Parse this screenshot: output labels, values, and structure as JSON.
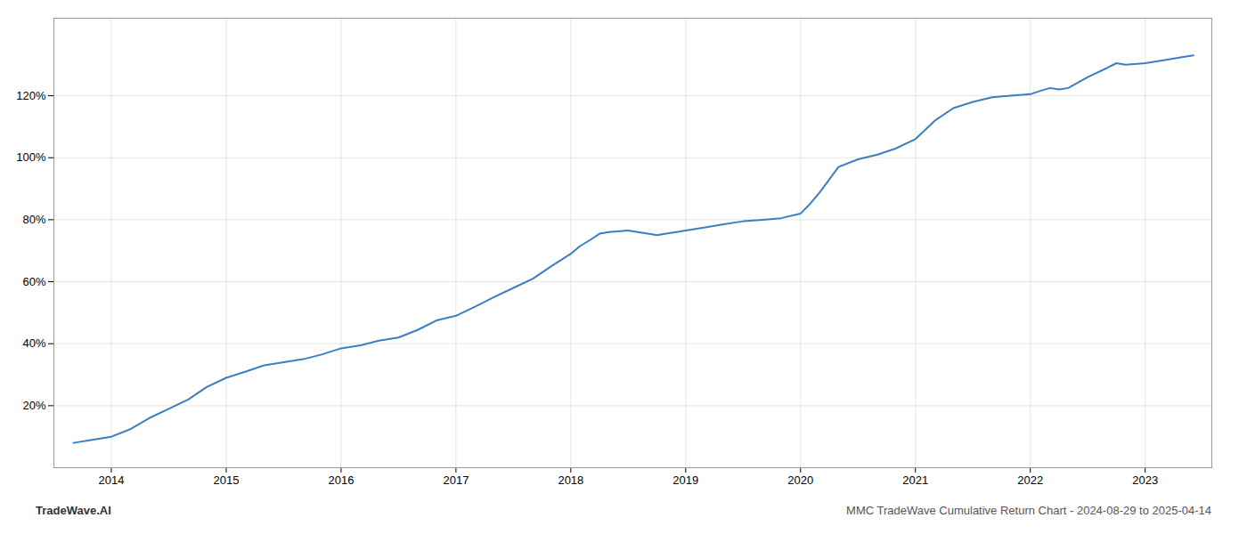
{
  "chart_data": {
    "type": "line",
    "annotations": [
      "TradeWave.AI",
      "MMC TradeWave Cumulative Return Chart - 2024-08-29 to 2025-04-14"
    ],
    "x": [
      2013.67,
      2013.83,
      2014.0,
      2014.17,
      2014.33,
      2014.5,
      2014.67,
      2014.83,
      2015.0,
      2015.17,
      2015.33,
      2015.5,
      2015.67,
      2015.83,
      2016.0,
      2016.17,
      2016.33,
      2016.5,
      2016.67,
      2016.83,
      2017.0,
      2017.17,
      2017.33,
      2017.5,
      2017.67,
      2017.83,
      2018.0,
      2018.08,
      2018.17,
      2018.25,
      2018.33,
      2018.5,
      2018.58,
      2018.67,
      2018.75,
      2018.83,
      2019.0,
      2019.17,
      2019.25,
      2019.33,
      2019.5,
      2019.67,
      2019.83,
      2020.0,
      2020.08,
      2020.17,
      2020.25,
      2020.33,
      2020.5,
      2020.67,
      2020.83,
      2021.0,
      2021.17,
      2021.33,
      2021.5,
      2021.67,
      2021.83,
      2022.0,
      2022.08,
      2022.17,
      2022.25,
      2022.33,
      2022.5,
      2022.67,
      2022.75,
      2022.83,
      2023.0,
      2023.17,
      2023.33,
      2023.42
    ],
    "values": [
      8.0,
      9.0,
      10.0,
      12.5,
      16.0,
      19.0,
      22.0,
      26.0,
      29.0,
      31.0,
      33.0,
      34.0,
      35.0,
      36.5,
      38.5,
      39.5,
      41.0,
      42.0,
      44.5,
      47.5,
      49.0,
      52.0,
      55.0,
      58.0,
      61.0,
      65.0,
      69.0,
      71.5,
      73.5,
      75.5,
      76.0,
      76.5,
      76.0,
      75.5,
      75.0,
      75.5,
      76.5,
      77.5,
      78.0,
      78.5,
      79.5,
      80.0,
      80.5,
      82.0,
      85.0,
      89.0,
      93.0,
      97.0,
      99.5,
      101.0,
      103.0,
      106.0,
      112.0,
      116.0,
      118.0,
      119.5,
      120.0,
      120.5,
      121.5,
      122.5,
      122.0,
      122.5,
      126.0,
      129.0,
      130.5,
      130.0,
      130.5,
      131.5,
      132.5,
      133.0
    ],
    "color": "#3a7fc1",
    "xlim": [
      2013.5,
      2023.58
    ],
    "ylim": [
      0,
      145
    ],
    "xticks": [
      2014,
      2015,
      2016,
      2017,
      2018,
      2019,
      2020,
      2021,
      2022,
      2023
    ],
    "yticks": [
      {
        "value": 20,
        "label": "20%"
      },
      {
        "value": 40,
        "label": "40%"
      },
      {
        "value": 60,
        "label": "60%"
      },
      {
        "value": 80,
        "label": "80%"
      },
      {
        "value": 100,
        "label": "100%"
      },
      {
        "value": 120,
        "label": "120%"
      }
    ],
    "grid": true
  }
}
